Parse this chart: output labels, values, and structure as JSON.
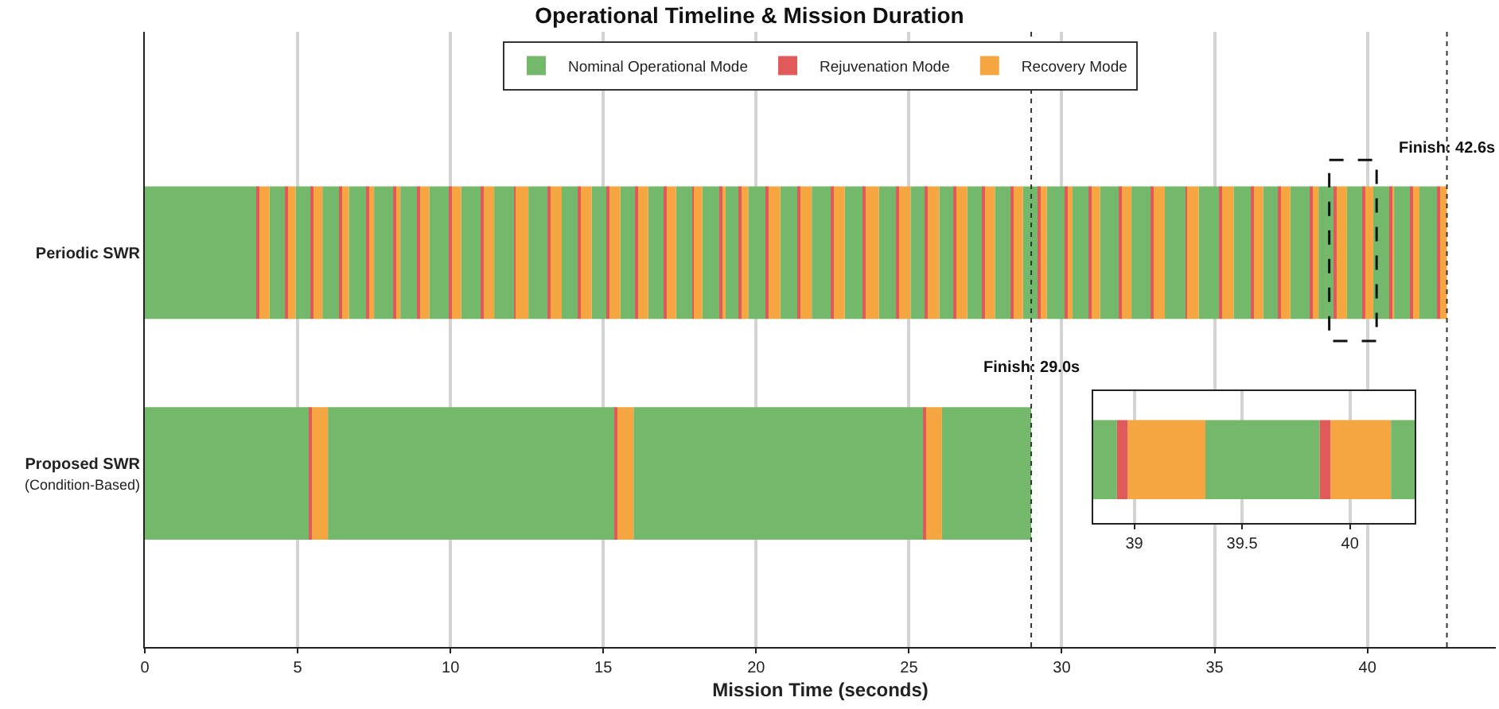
{
  "chart_data": [
    {
      "type": "bar",
      "orientation": "horizontal",
      "title": "Operational Timeline & Mission Duration",
      "xlabel": "Mission Time (seconds)",
      "categories": [
        "Periodic SWR",
        "Proposed SWR\n(Condition-Based)"
      ],
      "xlim": [
        0,
        44.2
      ],
      "xticks": [
        0,
        5,
        10,
        15,
        20,
        25,
        30,
        35,
        40
      ],
      "grid": "x",
      "legend": "top",
      "series": [
        {
          "name": "Nominal Operational Mode",
          "color": "#74b96b",
          "base": [
            0,
            0
          ],
          "values": [
            3.68,
            5.4
          ]
        },
        {
          "color": "#74b96b",
          "base": [
            4.08,
            5.99
          ],
          "values": [
            0.52,
            9.41
          ]
        },
        {
          "color": "#74b96b",
          "base": [
            4.93,
            15.99
          ],
          "values": [
            0.53,
            9.49
          ]
        },
        {
          "color": "#74b96b",
          "base": [
            5.81,
            26.08
          ],
          "values": [
            0.56,
            2.92
          ]
        },
        {
          "color": "#74b96b",
          "base": [
            6.68,
            null
          ],
          "values": [
            0.59,
            null
          ]
        },
        {
          "color": "#74b96b",
          "base": [
            7.5,
            null
          ],
          "values": [
            0.63,
            null
          ]
        },
        {
          "color": "#74b96b",
          "base": [
            8.36,
            null
          ],
          "values": [
            0.57,
            null
          ]
        },
        {
          "color": "#74b96b",
          "base": [
            9.31,
            null
          ],
          "values": [
            0.64,
            null
          ]
        },
        {
          "color": "#74b96b",
          "base": [
            10.35,
            null
          ],
          "values": [
            0.66,
            null
          ]
        },
        {
          "color": "#74b96b",
          "base": [
            11.43,
            null
          ],
          "values": [
            0.65,
            null
          ]
        },
        {
          "color": "#74b96b",
          "base": [
            12.55,
            null
          ],
          "values": [
            0.66,
            null
          ]
        },
        {
          "color": "#74b96b",
          "base": [
            13.64,
            null
          ],
          "values": [
            0.53,
            null
          ]
        },
        {
          "color": "#74b96b",
          "base": [
            14.62,
            null
          ],
          "values": [
            0.52,
            null
          ]
        },
        {
          "color": "#74b96b",
          "base": [
            15.56,
            null
          ],
          "values": [
            0.51,
            null
          ]
        },
        {
          "color": "#74b96b",
          "base": [
            16.47,
            null
          ],
          "values": [
            0.51,
            null
          ]
        },
        {
          "color": "#74b96b",
          "base": [
            17.38,
            null
          ],
          "values": [
            0.53,
            null
          ]
        },
        {
          "color": "#74b96b",
          "base": [
            18.24,
            null
          ],
          "values": [
            0.57,
            null
          ]
        },
        {
          "color": "#74b96b",
          "base": [
            19.0,
            null
          ],
          "values": [
            0.45,
            null
          ]
        },
        {
          "color": "#74b96b",
          "base": [
            19.74,
            null
          ],
          "values": [
            0.6,
            null
          ]
        },
        {
          "color": "#74b96b",
          "base": [
            20.79,
            null
          ],
          "values": [
            0.6,
            null
          ]
        },
        {
          "color": "#74b96b",
          "base": [
            21.82,
            null
          ],
          "values": [
            0.63,
            null
          ]
        },
        {
          "color": "#74b96b",
          "base": [
            22.9,
            null
          ],
          "values": [
            0.63,
            null
          ]
        },
        {
          "color": "#74b96b",
          "base": [
            24.02,
            null
          ],
          "values": [
            0.58,
            null
          ]
        },
        {
          "color": "#74b96b",
          "base": [
            25.05,
            null
          ],
          "values": [
            0.51,
            null
          ]
        },
        {
          "color": "#74b96b",
          "base": [
            25.99,
            null
          ],
          "values": [
            0.49,
            null
          ]
        },
        {
          "color": "#74b96b",
          "base": [
            26.91,
            null
          ],
          "values": [
            0.52,
            null
          ]
        },
        {
          "color": "#74b96b",
          "base": [
            27.81,
            null
          ],
          "values": [
            0.54,
            null
          ]
        },
        {
          "color": "#74b96b",
          "base": [
            28.73,
            null
          ],
          "values": [
            0.52,
            null
          ]
        },
        {
          "color": "#74b96b",
          "base": [
            29.51,
            null
          ],
          "values": [
            0.61,
            null
          ]
        },
        {
          "color": "#74b96b",
          "base": [
            30.35,
            null
          ],
          "values": [
            0.55,
            null
          ]
        },
        {
          "color": "#74b96b",
          "base": [
            31.25,
            null
          ],
          "values": [
            0.63,
            null
          ]
        },
        {
          "color": "#74b96b",
          "base": [
            32.28,
            null
          ],
          "values": [
            0.66,
            null
          ]
        },
        {
          "color": "#74b96b",
          "base": [
            33.37,
            null
          ],
          "values": [
            0.68,
            null
          ]
        },
        {
          "color": "#74b96b",
          "base": [
            34.48,
            null
          ],
          "values": [
            0.67,
            null
          ]
        },
        {
          "color": "#74b96b",
          "base": [
            35.62,
            null
          ],
          "values": [
            0.57,
            null
          ]
        },
        {
          "color": "#74b96b",
          "base": [
            36.59,
            null
          ],
          "values": [
            0.51,
            null
          ]
        },
        {
          "color": "#74b96b",
          "base": [
            37.48,
            null
          ],
          "values": [
            0.66,
            null
          ]
        },
        {
          "color": "#74b96b",
          "base": [
            38.4,
            null
          ],
          "values": [
            0.52,
            null
          ]
        },
        {
          "color": "#74b96b",
          "base": [
            39.33,
            null
          ],
          "values": [
            0.53,
            null
          ]
        },
        {
          "color": "#74b96b",
          "base": [
            40.19,
            null
          ],
          "values": [
            0.55,
            null
          ]
        },
        {
          "color": "#74b96b",
          "base": [
            40.87,
            null
          ],
          "values": [
            0.55,
            null
          ]
        },
        {
          "color": "#74b96b",
          "base": [
            41.7,
            null
          ],
          "values": [
            0.59,
            null
          ]
        },
        {
          "name": "Rejuvenation Mode",
          "color": "#e05a5a",
          "base": [
            3.68,
            5.4
          ],
          "values": [
            0.05,
            0.05
          ]
        },
        {
          "color": "#e05a5a",
          "base": [
            4.6,
            15.4
          ],
          "values": [
            0.05,
            0.05
          ]
        },
        {
          "color": "#e05a5a",
          "base": [
            5.46,
            25.48
          ],
          "values": [
            0.05,
            0.05
          ]
        },
        {
          "color": "#e05a5a",
          "base": [
            6.37,
            null
          ],
          "values": [
            0.05,
            null
          ]
        },
        {
          "color": "#e05a5a",
          "base": [
            7.27,
            null
          ],
          "values": [
            0.05,
            null
          ]
        },
        {
          "color": "#e05a5a",
          "base": [
            8.13,
            null
          ],
          "values": [
            0.05,
            null
          ]
        },
        {
          "color": "#e05a5a",
          "base": [
            8.93,
            null
          ],
          "values": [
            0.05,
            null
          ]
        },
        {
          "color": "#e05a5a",
          "base": [
            9.95,
            null
          ],
          "values": [
            0.05,
            null
          ]
        },
        {
          "color": "#e05a5a",
          "base": [
            11.01,
            null
          ],
          "values": [
            0.05,
            null
          ]
        },
        {
          "color": "#e05a5a",
          "base": [
            12.08,
            null
          ],
          "values": [
            0.05,
            null
          ]
        },
        {
          "color": "#e05a5a",
          "base": [
            13.21,
            null
          ],
          "values": [
            0.05,
            null
          ]
        },
        {
          "color": "#e05a5a",
          "base": [
            14.17,
            null
          ],
          "values": [
            0.05,
            null
          ]
        },
        {
          "color": "#e05a5a",
          "base": [
            15.14,
            null
          ],
          "values": [
            0.05,
            null
          ]
        },
        {
          "color": "#e05a5a",
          "base": [
            16.07,
            null
          ],
          "values": [
            0.05,
            null
          ]
        },
        {
          "color": "#e05a5a",
          "base": [
            16.98,
            null
          ],
          "values": [
            0.05,
            null
          ]
        },
        {
          "color": "#e05a5a",
          "base": [
            17.91,
            null
          ],
          "values": [
            0.05,
            null
          ]
        },
        {
          "color": "#e05a5a",
          "base": [
            18.81,
            null
          ],
          "values": [
            0.05,
            null
          ]
        },
        {
          "color": "#e05a5a",
          "base": [
            19.45,
            null
          ],
          "values": [
            0.05,
            null
          ]
        },
        {
          "color": "#e05a5a",
          "base": [
            20.34,
            null
          ],
          "values": [
            0.05,
            null
          ]
        },
        {
          "color": "#e05a5a",
          "base": [
            21.39,
            null
          ],
          "values": [
            0.05,
            null
          ]
        },
        {
          "color": "#e05a5a",
          "base": [
            22.45,
            null
          ],
          "values": [
            0.05,
            null
          ]
        },
        {
          "color": "#e05a5a",
          "base": [
            23.53,
            null
          ],
          "values": [
            0.05,
            null
          ]
        },
        {
          "color": "#e05a5a",
          "base": [
            24.6,
            null
          ],
          "values": [
            0.05,
            null
          ]
        },
        {
          "color": "#e05a5a",
          "base": [
            25.56,
            null
          ],
          "values": [
            0.05,
            null
          ]
        },
        {
          "color": "#e05a5a",
          "base": [
            26.48,
            null
          ],
          "values": [
            0.05,
            null
          ]
        },
        {
          "color": "#e05a5a",
          "base": [
            27.43,
            null
          ],
          "values": [
            0.05,
            null
          ]
        },
        {
          "color": "#e05a5a",
          "base": [
            28.35,
            null
          ],
          "values": [
            0.05,
            null
          ]
        },
        {
          "color": "#e05a5a",
          "base": [
            29.25,
            null
          ],
          "values": [
            0.05,
            null
          ]
        },
        {
          "color": "#e05a5a",
          "base": [
            30.12,
            null
          ],
          "values": [
            0.05,
            null
          ]
        },
        {
          "color": "#e05a5a",
          "base": [
            30.9,
            null
          ],
          "values": [
            0.05,
            null
          ]
        },
        {
          "color": "#e05a5a",
          "base": [
            31.88,
            null
          ],
          "values": [
            0.05,
            null
          ]
        },
        {
          "color": "#e05a5a",
          "base": [
            32.94,
            null
          ],
          "values": [
            0.05,
            null
          ]
        },
        {
          "color": "#e05a5a",
          "base": [
            34.05,
            null
          ],
          "values": [
            0.05,
            null
          ]
        },
        {
          "color": "#e05a5a",
          "base": [
            35.15,
            null
          ],
          "values": [
            0.05,
            null
          ]
        },
        {
          "color": "#e05a5a",
          "base": [
            36.19,
            null
          ],
          "values": [
            0.05,
            null
          ]
        },
        {
          "color": "#e05a5a",
          "base": [
            37.1,
            null
          ],
          "values": [
            0.05,
            null
          ]
        },
        {
          "color": "#e05a5a",
          "base": [
            38.14,
            null
          ],
          "values": [
            0.05,
            null
          ]
        },
        {
          "color": "#e05a5a",
          "base": [
            38.92,
            null
          ],
          "values": [
            0.05,
            null
          ]
        },
        {
          "color": "#e05a5a",
          "base": [
            39.86,
            null
          ],
          "values": [
            0.05,
            null
          ]
        },
        {
          "color": "#e05a5a",
          "base": [
            40.74,
            null
          ],
          "values": [
            0.05,
            null
          ]
        },
        {
          "color": "#e05a5a",
          "base": [
            41.42,
            null
          ],
          "values": [
            0.05,
            null
          ]
        },
        {
          "color": "#e05a5a",
          "base": [
            42.29,
            null
          ],
          "values": [
            0.05,
            null
          ]
        },
        {
          "name": "Recovery Mode",
          "color": "#f5a641",
          "base": [
            3.73,
            5.45
          ],
          "values": [
            0.35,
            0.54
          ]
        },
        {
          "color": "#f5a641",
          "base": [
            4.65,
            15.45
          ],
          "values": [
            0.28,
            0.54
          ]
        },
        {
          "color": "#f5a641",
          "base": [
            5.51,
            25.53
          ],
          "values": [
            0.3,
            0.55
          ]
        },
        {
          "color": "#f5a641",
          "base": [
            6.42,
            null
          ],
          "values": [
            0.26,
            null
          ]
        },
        {
          "color": "#f5a641",
          "base": [
            7.32,
            null
          ],
          "values": [
            0.18,
            null
          ]
        },
        {
          "color": "#f5a641",
          "base": [
            8.18,
            null
          ],
          "values": [
            0.18,
            null
          ]
        },
        {
          "color": "#f5a641",
          "base": [
            8.98,
            null
          ],
          "values": [
            0.33,
            null
          ]
        },
        {
          "color": "#f5a641",
          "base": [
            10.0,
            null
          ],
          "values": [
            0.35,
            null
          ]
        },
        {
          "color": "#f5a641",
          "base": [
            11.06,
            null
          ],
          "values": [
            0.37,
            null
          ]
        },
        {
          "color": "#f5a641",
          "base": [
            12.13,
            null
          ],
          "values": [
            0.42,
            null
          ]
        },
        {
          "color": "#f5a641",
          "base": [
            13.26,
            null
          ],
          "values": [
            0.38,
            null
          ]
        },
        {
          "color": "#f5a641",
          "base": [
            14.22,
            null
          ],
          "values": [
            0.4,
            null
          ]
        },
        {
          "color": "#f5a641",
          "base": [
            15.19,
            null
          ],
          "values": [
            0.37,
            null
          ]
        },
        {
          "color": "#f5a641",
          "base": [
            16.12,
            null
          ],
          "values": [
            0.35,
            null
          ]
        },
        {
          "color": "#f5a641",
          "base": [
            17.03,
            null
          ],
          "values": [
            0.35,
            null
          ]
        },
        {
          "color": "#f5a641",
          "base": [
            17.96,
            null
          ],
          "values": [
            0.28,
            null
          ]
        },
        {
          "color": "#f5a641",
          "base": [
            18.86,
            null
          ],
          "values": [
            0.14,
            null
          ]
        },
        {
          "color": "#f5a641",
          "base": [
            19.5,
            null
          ],
          "values": [
            0.24,
            null
          ]
        },
        {
          "color": "#f5a641",
          "base": [
            20.39,
            null
          ],
          "values": [
            0.4,
            null
          ]
        },
        {
          "color": "#f5a641",
          "base": [
            21.44,
            null
          ],
          "values": [
            0.38,
            null
          ]
        },
        {
          "color": "#f5a641",
          "base": [
            22.5,
            null
          ],
          "values": [
            0.4,
            null
          ]
        },
        {
          "color": "#f5a641",
          "base": [
            23.58,
            null
          ],
          "values": [
            0.44,
            null
          ]
        },
        {
          "color": "#f5a641",
          "base": [
            24.65,
            null
          ],
          "values": [
            0.4,
            null
          ]
        },
        {
          "color": "#f5a641",
          "base": [
            25.61,
            null
          ],
          "values": [
            0.38,
            null
          ]
        },
        {
          "color": "#f5a641",
          "base": [
            26.53,
            null
          ],
          "values": [
            0.38,
            null
          ]
        },
        {
          "color": "#f5a641",
          "base": [
            27.48,
            null
          ],
          "values": [
            0.33,
            null
          ]
        },
        {
          "color": "#f5a641",
          "base": [
            28.4,
            null
          ],
          "values": [
            0.33,
            null
          ]
        },
        {
          "color": "#f5a641",
          "base": [
            29.3,
            null
          ],
          "values": [
            0.21,
            null
          ]
        },
        {
          "color": "#f5a641",
          "base": [
            30.17,
            null
          ],
          "values": [
            0.18,
            null
          ]
        },
        {
          "color": "#f5a641",
          "base": [
            30.95,
            null
          ],
          "values": [
            0.3,
            null
          ]
        },
        {
          "color": "#f5a641",
          "base": [
            31.93,
            null
          ],
          "values": [
            0.35,
            null
          ]
        },
        {
          "color": "#f5a641",
          "base": [
            32.99,
            null
          ],
          "values": [
            0.38,
            null
          ]
        },
        {
          "color": "#f5a641",
          "base": [
            34.1,
            null
          ],
          "values": [
            0.38,
            null
          ]
        },
        {
          "color": "#f5a641",
          "base": [
            35.2,
            null
          ],
          "values": [
            0.42,
            null
          ]
        },
        {
          "color": "#f5a641",
          "base": [
            36.24,
            null
          ],
          "values": [
            0.35,
            null
          ]
        },
        {
          "color": "#f5a641",
          "base": [
            37.15,
            null
          ],
          "values": [
            0.33,
            null
          ]
        },
        {
          "color": "#f5a641",
          "base": [
            38.19,
            null
          ],
          "values": [
            0.21,
            null
          ]
        },
        {
          "color": "#f5a641",
          "base": [
            38.97,
            null
          ],
          "values": [
            0.36,
            null
          ]
        },
        {
          "color": "#f5a641",
          "base": [
            39.91,
            null
          ],
          "values": [
            0.28,
            null
          ]
        },
        {
          "color": "#f5a641",
          "base": [
            40.79,
            null
          ],
          "values": [
            0.08,
            null
          ]
        },
        {
          "color": "#f5a641",
          "base": [
            41.47,
            null
          ],
          "values": [
            0.23,
            null
          ]
        },
        {
          "color": "#f5a641",
          "base": [
            42.34,
            null
          ],
          "values": [
            0.26,
            null
          ]
        }
      ],
      "ref_lines": [
        {
          "axis": "x",
          "value": 29.0,
          "label": "Finish: 29.0s",
          "color": "#333333",
          "line_style": "dotted"
        },
        {
          "axis": "x",
          "value": 42.6,
          "label": "Finish: 42.6s",
          "color": "#333333",
          "line_style": "dotted"
        }
      ]
    },
    {
      "type": "bar",
      "orientation": "horizontal",
      "categories": [
        null
      ],
      "tick_labels": "x",
      "xlim": [
        38.81,
        40.3
      ],
      "xticks": [
        39,
        39.5,
        40
      ],
      "grid": "x",
      "series": [
        {
          "color": "#74b96b",
          "base": [
            38.81
          ],
          "values": [
            0.11
          ]
        },
        {
          "color": "#74b96b",
          "base": [
            39.33
          ],
          "values": [
            0.53
          ]
        },
        {
          "color": "#74b96b",
          "base": [
            40.19
          ],
          "values": [
            0.11
          ]
        },
        {
          "color": "#e05a5a",
          "base": [
            38.92
          ],
          "values": [
            0.05
          ]
        },
        {
          "color": "#e05a5a",
          "base": [
            39.86
          ],
          "values": [
            0.05
          ]
        },
        {
          "color": "#f5a641",
          "base": [
            38.97
          ],
          "values": [
            0.36
          ]
        },
        {
          "color": "#f5a641",
          "base": [
            39.91
          ],
          "values": [
            0.28
          ]
        }
      ]
    }
  ]
}
